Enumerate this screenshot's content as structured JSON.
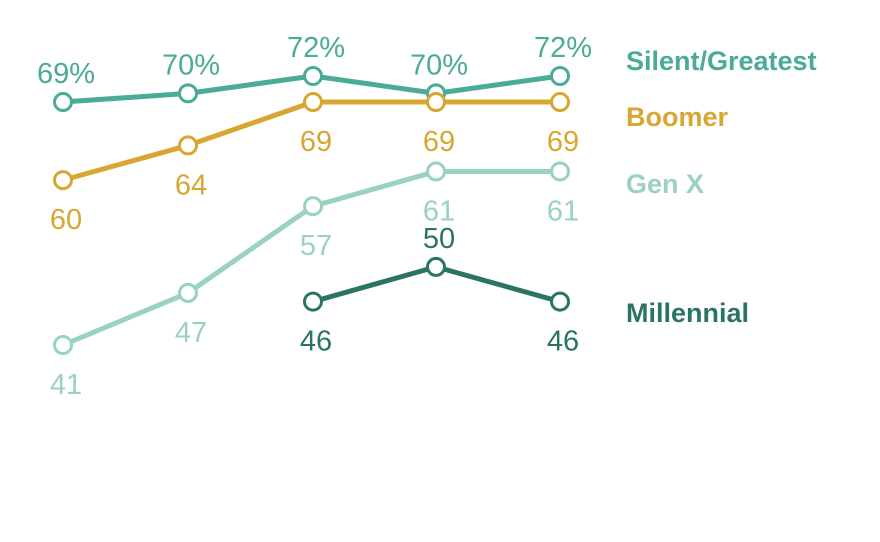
{
  "chart_data": {
    "type": "line",
    "title": "",
    "xlabel": "",
    "ylabel": "",
    "ylim": [
      40,
      73
    ],
    "grid": false,
    "legend_position": "right (end-of-line labels)",
    "x": [
      1,
      2,
      3,
      4,
      5
    ],
    "series": [
      {
        "name": "Silent/Greatest",
        "color": "#4aab97",
        "values": [
          69,
          70,
          72,
          70,
          72
        ],
        "labels": [
          "69%",
          "70%",
          "72%",
          "70%",
          "72%"
        ],
        "label_position": "above"
      },
      {
        "name": "Boomer",
        "color": "#d8a732",
        "values": [
          60,
          64,
          69,
          69,
          69
        ],
        "labels": [
          "60",
          "64",
          "69",
          "69",
          "69"
        ],
        "label_position": "below"
      },
      {
        "name": "Gen X",
        "color": "#99d1c3",
        "values": [
          41,
          47,
          57,
          61,
          61
        ],
        "labels": [
          "41",
          "47",
          "57",
          "61",
          "61"
        ],
        "label_position": "below"
      },
      {
        "name": "Millennial",
        "color": "#2b7463",
        "values": [
          null,
          null,
          46,
          50,
          46
        ],
        "labels": [
          "",
          "",
          "46",
          "50",
          "46"
        ],
        "label_position": "mixed"
      }
    ]
  }
}
